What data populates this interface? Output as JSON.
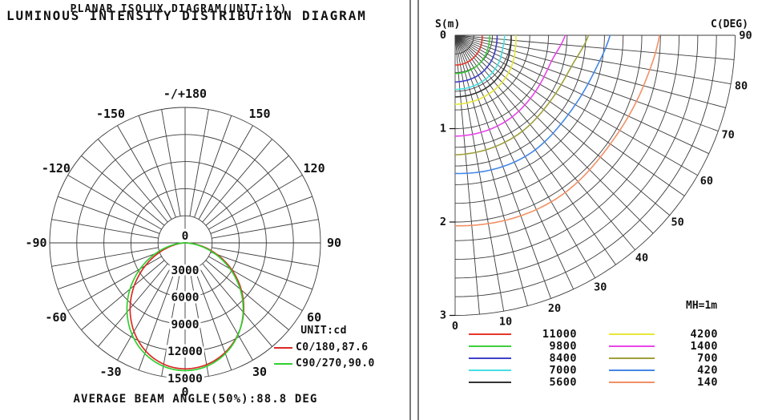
{
  "page": {
    "background": "#ffffff"
  },
  "left_panel": {
    "title": "LUMINOUS INTENSITY DISTRIBUTION DIAGRAM",
    "footer": "AVERAGE BEAM ANGLE(50%):88.8 DEG",
    "legend": {
      "unit": "UNIT:cd",
      "entries": [
        {
          "label": "C0/180,87.6",
          "color": "#d92b26"
        },
        {
          "label": "C90/270,90.0",
          "color": "#30cf30"
        }
      ]
    }
  },
  "right_panel": {
    "title": "PLANAR ISOLUX DIAGRAM(UNIT:lx)",
    "s_axis_label": "S(m)",
    "c_axis_label": "C(DEG)",
    "mounting_height_label": "MH=1m"
  },
  "chart_data": [
    {
      "type": "line",
      "variant": "polar_intensity_distribution",
      "title": "LUMINOUS INTENSITY DISTRIBUTION DIAGRAM",
      "unit": "cd",
      "ring_values": [
        3000,
        6000,
        9000,
        12000,
        15000
      ],
      "center_label": "0",
      "angle_labels": [
        {
          "deg": 180,
          "label": "-/+180"
        },
        {
          "deg": -150,
          "label": "-150"
        },
        {
          "deg": 150,
          "label": "150"
        },
        {
          "deg": -120,
          "label": "-120"
        },
        {
          "deg": 120,
          "label": "120"
        },
        {
          "deg": -90,
          "label": "-90"
        },
        {
          "deg": 90,
          "label": "90"
        },
        {
          "deg": -60,
          "label": "-60"
        },
        {
          "deg": 60,
          "label": "60"
        },
        {
          "deg": -30,
          "label": "-30"
        },
        {
          "deg": 30,
          "label": "30"
        },
        {
          "deg": 0,
          "label": "0"
        }
      ],
      "series": [
        {
          "name": "C0/180,87.6",
          "color": "#d92b26",
          "peak_cd": 13950,
          "beam_angle_deg": 87.6,
          "falloff_exp_left": 1.45,
          "falloff_exp_right": 1.22
        },
        {
          "name": "C90/270,90.0",
          "color": "#30cf30",
          "peak_cd": 14150,
          "beam_angle_deg": 90.0,
          "falloff_exp_left": 1.3,
          "falloff_exp_right": 1.3
        }
      ],
      "average_beam_angle_50pct_deg": 88.8
    },
    {
      "type": "line",
      "variant": "planar_isolux_quarter_polar",
      "title": "PLANAR ISOLUX DIAGRAM(UNIT:lx)",
      "unit": "lx",
      "mounting_height_m": 1,
      "radial_axis": {
        "label": "S(m)",
        "ticks": [
          0,
          1,
          2,
          3
        ],
        "max_m": 3,
        "grid_step_m": 0.2
      },
      "angle_axis": {
        "label": "C(DEG)",
        "tick_labels": [
          0,
          10,
          20,
          30,
          40,
          50,
          60,
          70,
          80,
          90
        ],
        "grid_step_deg": 5
      },
      "contours": [
        {
          "value": 11000,
          "color": "#e6382c",
          "radius_m": {
            "c0": 0.32,
            "c30": 0.315,
            "c55": 0.305,
            "c75": 0.295,
            "c90": 0.29
          }
        },
        {
          "value": 9800,
          "color": "#3ecf3e",
          "radius_m": {
            "c0": 0.41,
            "c30": 0.405,
            "c55": 0.39,
            "c75": 0.375,
            "c90": 0.37
          }
        },
        {
          "value": 8400,
          "color": "#3f3fc8",
          "radius_m": {
            "c0": 0.5,
            "c30": 0.495,
            "c55": 0.475,
            "c75": 0.455,
            "c90": 0.45
          }
        },
        {
          "value": 7000,
          "color": "#45dfe4",
          "radius_m": {
            "c0": 0.58,
            "c30": 0.575,
            "c55": 0.555,
            "c75": 0.53,
            "c90": 0.53
          }
        },
        {
          "value": 5600,
          "color": "#333333",
          "radius_m": {
            "c0": 0.66,
            "c30": 0.655,
            "c55": 0.635,
            "c75": 0.61,
            "c90": 0.6
          }
        },
        {
          "value": 4200,
          "color": "#e7e73c",
          "radius_m": {
            "c0": 0.74,
            "c30": 0.725,
            "c55": 0.7,
            "c75": 0.665,
            "c90": 0.65
          }
        },
        {
          "value": 1400,
          "color": "#e845e8",
          "radius_m": {
            "c0": 1.08,
            "c30": 1.07,
            "c55": 1.05,
            "c75": 1.07,
            "c90": 1.18
          }
        },
        {
          "value": 700,
          "color": "#9f9f3d",
          "radius_m": {
            "c0": 1.28,
            "c30": 1.26,
            "c55": 1.24,
            "c75": 1.29,
            "c90": 1.43
          }
        },
        {
          "value": 420,
          "color": "#4487e8",
          "radius_m": {
            "c0": 1.48,
            "c30": 1.5,
            "c55": 1.48,
            "c75": 1.54,
            "c90": 1.66
          }
        },
        {
          "value": 140,
          "color": "#f29066",
          "radius_m": {
            "c0": 2.04,
            "c30": 2.06,
            "c55": 2.03,
            "c75": 2.09,
            "c90": 2.19
          }
        }
      ]
    }
  ]
}
